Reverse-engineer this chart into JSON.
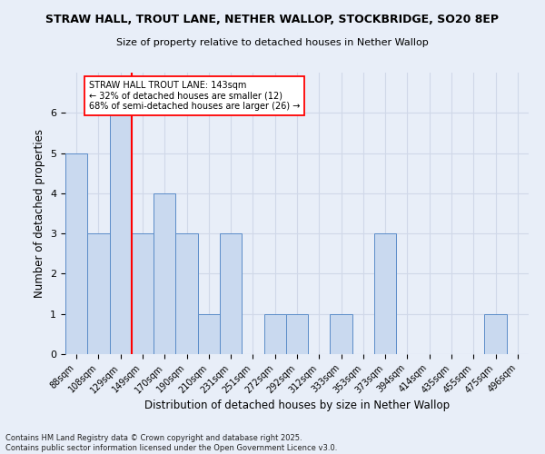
{
  "title": "STRAW HALL, TROUT LANE, NETHER WALLOP, STOCKBRIDGE, SO20 8EP",
  "subtitle": "Size of property relative to detached houses in Nether Wallop",
  "xlabel": "Distribution of detached houses by size in Nether Wallop",
  "ylabel": "Number of detached properties",
  "bin_labels": [
    "88sqm",
    "108sqm",
    "129sqm",
    "149sqm",
    "170sqm",
    "190sqm",
    "210sqm",
    "231sqm",
    "251sqm",
    "272sqm",
    "292sqm",
    "312sqm",
    "333sqm",
    "353sqm",
    "373sqm",
    "394sqm",
    "414sqm",
    "435sqm",
    "455sqm",
    "475sqm",
    "496sqm"
  ],
  "bin_values": [
    5,
    3,
    6,
    3,
    4,
    3,
    1,
    3,
    0,
    1,
    1,
    0,
    1,
    0,
    3,
    0,
    0,
    0,
    0,
    1,
    0
  ],
  "bar_color": "#c9d9ef",
  "bar_edge_color": "#5b8cc8",
  "grid_color": "#d0d8e8",
  "background_color": "#e8eef8",
  "vline_x_index": 2.5,
  "vline_color": "red",
  "annotation_text": "STRAW HALL TROUT LANE: 143sqm\n← 32% of detached houses are smaller (12)\n68% of semi-detached houses are larger (26) →",
  "annotation_box_color": "white",
  "annotation_box_edge": "red",
  "ylim": [
    0,
    7
  ],
  "yticks": [
    0,
    1,
    2,
    3,
    4,
    5,
    6,
    7
  ],
  "footer": "Contains HM Land Registry data © Crown copyright and database right 2025.\nContains public sector information licensed under the Open Government Licence v3.0."
}
